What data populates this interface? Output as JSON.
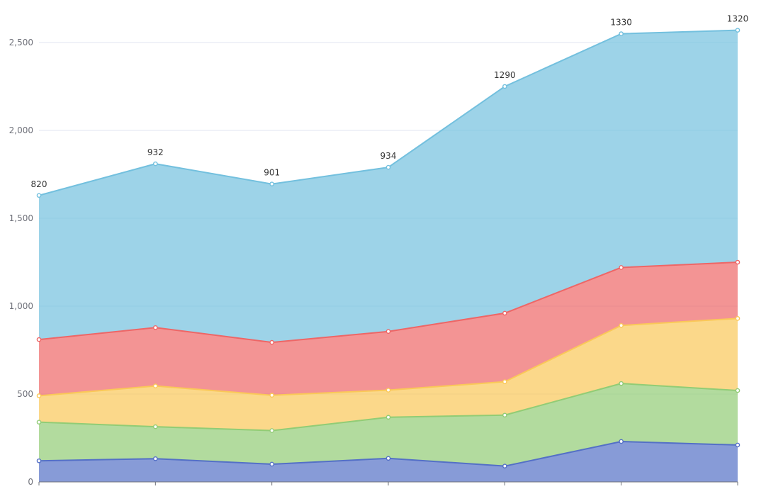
{
  "chart_data": {
    "type": "area",
    "stacked": true,
    "categories": [
      "",
      "",
      "",
      "",
      "",
      "",
      ""
    ],
    "series": [
      {
        "values": [
          120,
          132,
          101,
          134,
          90,
          230,
          210
        ],
        "color": "#5470c6"
      },
      {
        "values": [
          220,
          182,
          191,
          234,
          290,
          330,
          310
        ],
        "color": "#91cc75"
      },
      {
        "values": [
          150,
          232,
          201,
          154,
          190,
          330,
          410
        ],
        "color": "#fac858"
      },
      {
        "values": [
          320,
          332,
          301,
          334,
          390,
          330,
          320
        ],
        "color": "#ee6666"
      },
      {
        "values": [
          820,
          932,
          901,
          934,
          1290,
          1330,
          1320
        ],
        "color": "#73c0de",
        "show_labels": true
      }
    ],
    "ylim": [
      0,
      2500
    ],
    "yticks": [
      0,
      500,
      1000,
      1500,
      2000,
      2500
    ],
    "ytick_labels": [
      "0",
      "500",
      "1,000",
      "1,500",
      "2,000",
      "2,500"
    ],
    "grid": true,
    "legend": "none"
  }
}
